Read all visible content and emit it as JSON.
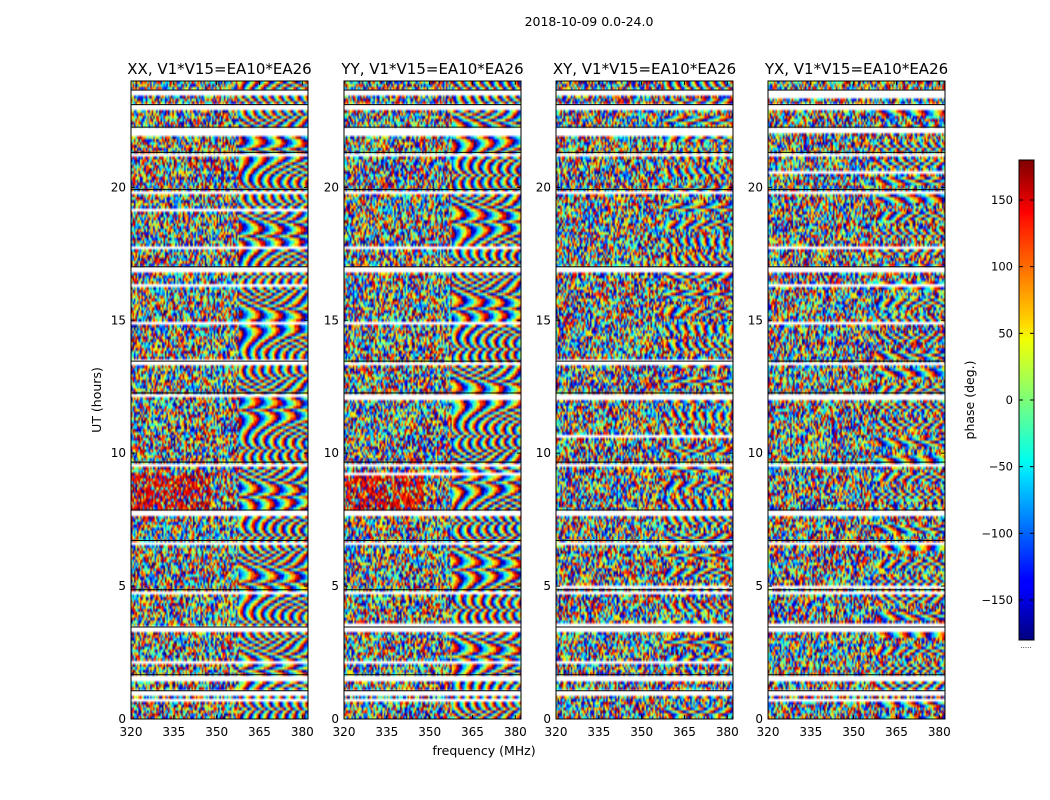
{
  "chart_data": {
    "type": "heatmap",
    "suptitle": "2018-10-09 0.0-24.0",
    "ylabel": "UT (hours)",
    "xlabel": "frequency (MHz)",
    "xlim": [
      320,
      382
    ],
    "ylim": [
      0,
      24
    ],
    "xticks": [
      320,
      335,
      350,
      365,
      380
    ],
    "yticks": [
      0,
      5,
      10,
      15,
      20
    ],
    "panels": [
      {
        "title": "XX, V1*V15=EA10*EA26"
      },
      {
        "title": "YY, V1*V15=EA10*EA26"
      },
      {
        "title": "XY, V1*V15=EA10*EA26"
      },
      {
        "title": "YX, V1*V15=EA10*EA26"
      }
    ],
    "colorbar": {
      "label": "phase (deg.)",
      "range": [
        -180,
        180
      ],
      "ticks": [
        -150,
        -100,
        -50,
        0,
        50,
        100,
        150
      ],
      "colormap": "jet",
      "footer": "....."
    },
    "flagged_hours": [
      0.95,
      1.55,
      3.35,
      4.75,
      6.6,
      7.75,
      9.55,
      12.15,
      13.35,
      16.9,
      19.8,
      21.2,
      22.15,
      23.0,
      23.55
    ]
  }
}
